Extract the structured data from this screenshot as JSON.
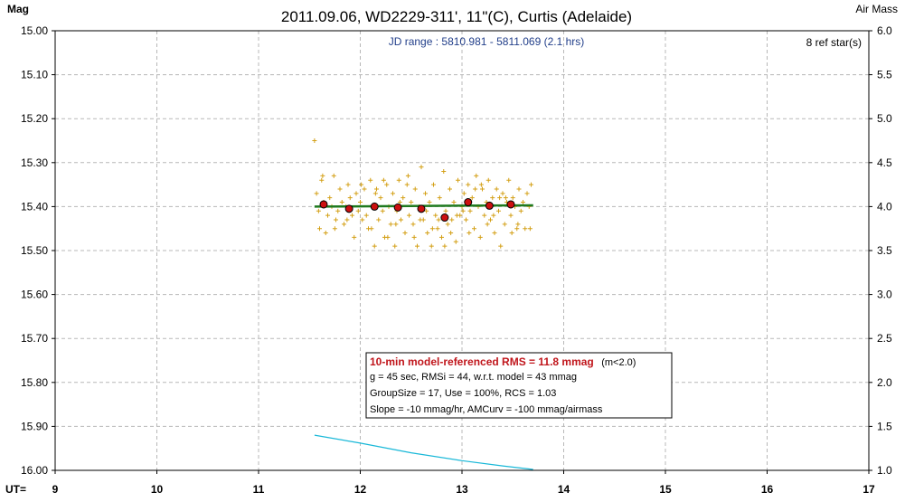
{
  "chart_data": {
    "type": "scatter",
    "title": "2011.09.06, WD2229-311', 11\"(C), Curtis (Adelaide)",
    "ylabel": "Mag",
    "y2label": "Air Mass",
    "xlabel_prefix": "UT=",
    "jd_range_text": "JD range : 5810.981 - 5811.069 (2.1 hrs)",
    "ref_stars_text": "8 ref star(s)",
    "xlim": [
      9,
      17
    ],
    "ylim": [
      16.0,
      15.0
    ],
    "y2lim": [
      1.0,
      6.0
    ],
    "x_ticks": [
      "9",
      "10",
      "11",
      "12",
      "13",
      "14",
      "15",
      "16",
      "17"
    ],
    "y_ticks": [
      "15.00",
      "15.10",
      "15.20",
      "15.30",
      "15.40",
      "15.50",
      "15.60",
      "15.70",
      "15.80",
      "15.90",
      "16.00"
    ],
    "y2_ticks": [
      "6.0",
      "5.5",
      "5.0",
      "4.5",
      "4.0",
      "3.5",
      "3.0",
      "2.5",
      "2.0",
      "1.5",
      "1.0"
    ],
    "grid": true,
    "colors": {
      "raw_points": "#d4a017",
      "averages": "#cc1010",
      "model": "#1f7a1f",
      "airmass": "#19b8d8",
      "jd_text": "#223f8a",
      "box_title": "#c0151b"
    },
    "raw_points": [
      [
        11.55,
        15.25
      ],
      [
        11.57,
        15.37
      ],
      [
        11.59,
        15.41
      ],
      [
        11.6,
        15.45
      ],
      [
        11.62,
        15.34
      ],
      [
        11.64,
        15.39
      ],
      [
        11.66,
        15.46
      ],
      [
        11.68,
        15.42
      ],
      [
        11.7,
        15.38
      ],
      [
        11.72,
        15.4
      ],
      [
        11.74,
        15.33
      ],
      [
        11.76,
        15.43
      ],
      [
        11.78,
        15.41
      ],
      [
        11.8,
        15.36
      ],
      [
        11.82,
        15.39
      ],
      [
        11.84,
        15.44
      ],
      [
        11.86,
        15.4
      ],
      [
        11.88,
        15.35
      ],
      [
        11.9,
        15.38
      ],
      [
        11.92,
        15.42
      ],
      [
        11.94,
        15.47
      ],
      [
        11.96,
        15.37
      ],
      [
        11.98,
        15.41
      ],
      [
        12.0,
        15.39
      ],
      [
        12.02,
        15.43
      ],
      [
        12.04,
        15.36
      ],
      [
        12.06,
        15.42
      ],
      [
        12.08,
        15.45
      ],
      [
        12.1,
        15.34
      ],
      [
        12.12,
        15.4
      ],
      [
        12.14,
        15.49
      ],
      [
        12.16,
        15.36
      ],
      [
        12.18,
        15.43
      ],
      [
        12.2,
        15.38
      ],
      [
        12.22,
        15.41
      ],
      [
        12.24,
        15.47
      ],
      [
        12.26,
        15.35
      ],
      [
        12.28,
        15.4
      ],
      [
        12.3,
        15.44
      ],
      [
        12.32,
        15.37
      ],
      [
        12.34,
        15.49
      ],
      [
        12.36,
        15.41
      ],
      [
        12.38,
        15.34
      ],
      [
        12.4,
        15.43
      ],
      [
        12.42,
        15.38
      ],
      [
        12.44,
        15.46
      ],
      [
        12.46,
        15.35
      ],
      [
        12.48,
        15.42
      ],
      [
        12.5,
        15.39
      ],
      [
        12.52,
        15.44
      ],
      [
        12.54,
        15.36
      ],
      [
        12.56,
        15.49
      ],
      [
        12.58,
        15.4
      ],
      [
        12.6,
        15.31
      ],
      [
        12.62,
        15.43
      ],
      [
        12.64,
        15.37
      ],
      [
        12.66,
        15.46
      ],
      [
        12.68,
        15.39
      ],
      [
        12.7,
        15.49
      ],
      [
        12.72,
        15.35
      ],
      [
        12.74,
        15.42
      ],
      [
        12.76,
        15.45
      ],
      [
        12.78,
        15.38
      ],
      [
        12.8,
        15.47
      ],
      [
        12.82,
        15.32
      ],
      [
        12.84,
        15.41
      ],
      [
        12.86,
        15.44
      ],
      [
        12.88,
        15.36
      ],
      [
        12.9,
        15.43
      ],
      [
        12.92,
        15.39
      ],
      [
        12.94,
        15.48
      ],
      [
        12.96,
        15.34
      ],
      [
        12.98,
        15.42
      ],
      [
        13.0,
        15.4
      ],
      [
        13.02,
        15.37
      ],
      [
        13.04,
        15.43
      ],
      [
        13.06,
        15.35
      ],
      [
        13.08,
        15.41
      ],
      [
        13.1,
        15.38
      ],
      [
        13.12,
        15.45
      ],
      [
        13.14,
        15.33
      ],
      [
        13.16,
        15.4
      ],
      [
        13.18,
        15.47
      ],
      [
        13.2,
        15.36
      ],
      [
        13.22,
        15.42
      ],
      [
        13.24,
        15.39
      ],
      [
        13.26,
        15.34
      ],
      [
        13.28,
        15.43
      ],
      [
        13.3,
        15.38
      ],
      [
        13.32,
        15.46
      ],
      [
        13.34,
        15.36
      ],
      [
        13.36,
        15.41
      ],
      [
        13.38,
        15.49
      ],
      [
        13.4,
        15.37
      ],
      [
        13.42,
        15.44
      ],
      [
        13.44,
        15.39
      ],
      [
        13.46,
        15.34
      ],
      [
        13.48,
        15.42
      ],
      [
        13.5,
        15.38
      ],
      [
        13.52,
        15.4
      ],
      [
        13.54,
        15.45
      ],
      [
        13.56,
        15.36
      ],
      [
        13.58,
        15.41
      ],
      [
        13.6,
        15.39
      ],
      [
        13.62,
        15.45
      ],
      [
        13.64,
        15.37
      ],
      [
        13.66,
        15.4
      ],
      [
        13.68,
        15.35
      ],
      [
        11.63,
        15.33
      ],
      [
        11.75,
        15.45
      ],
      [
        11.87,
        15.43
      ],
      [
        12.01,
        15.35
      ],
      [
        12.11,
        15.45
      ],
      [
        12.23,
        15.34
      ],
      [
        12.35,
        15.44
      ],
      [
        12.47,
        15.33
      ],
      [
        12.59,
        15.43
      ],
      [
        12.71,
        15.45
      ],
      [
        12.83,
        15.49
      ],
      [
        12.95,
        15.42
      ],
      [
        13.07,
        15.46
      ],
      [
        13.19,
        15.35
      ],
      [
        13.31,
        15.42
      ],
      [
        13.43,
        15.38
      ],
      [
        13.55,
        15.44
      ],
      [
        13.67,
        15.45
      ],
      [
        12.15,
        15.37
      ],
      [
        12.27,
        15.47
      ],
      [
        12.39,
        15.39
      ],
      [
        12.53,
        15.47
      ],
      [
        12.65,
        15.41
      ],
      [
        12.77,
        15.43
      ],
      [
        12.89,
        15.46
      ],
      [
        13.01,
        15.41
      ],
      [
        13.13,
        15.36
      ],
      [
        13.25,
        15.44
      ],
      [
        13.37,
        15.38
      ],
      [
        13.49,
        15.46
      ]
    ],
    "averages": [
      [
        11.64,
        15.395
      ],
      [
        11.89,
        15.405
      ],
      [
        12.14,
        15.4
      ],
      [
        12.37,
        15.402
      ],
      [
        12.6,
        15.405
      ],
      [
        12.83,
        15.425
      ],
      [
        13.06,
        15.39
      ],
      [
        13.27,
        15.398
      ],
      [
        13.48,
        15.395
      ]
    ],
    "model_line": [
      [
        11.55,
        15.4
      ],
      [
        13.7,
        15.397
      ]
    ],
    "airmass": [
      [
        11.55,
        1.4
      ],
      [
        12.0,
        1.31
      ],
      [
        12.5,
        1.2
      ],
      [
        13.0,
        1.11
      ],
      [
        13.4,
        1.05
      ],
      [
        13.7,
        1.01
      ]
    ],
    "stats_box": {
      "title": "10-min model-referenced RMS = 11.8 mmag",
      "title_suffix": "(m<2.0)",
      "lines": [
        "g = 45 sec, RMSi = 44, w.r.t. model = 43 mmag",
        "GroupSize = 17, Use = 100%, RCS = 1.03",
        "Slope = -10 mmag/hr, AMCurv = -100 mmag/airmass"
      ]
    }
  }
}
